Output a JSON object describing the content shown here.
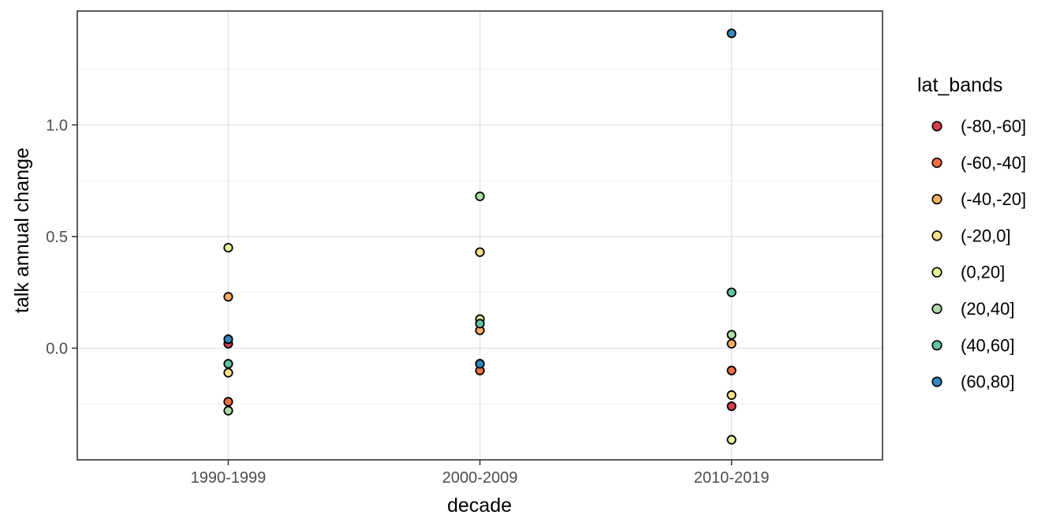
{
  "chart_data": {
    "type": "scatter",
    "title": "",
    "xlabel": "decade",
    "ylabel": "talk annual change",
    "legend_title": "lat_bands",
    "legend_position": "right",
    "palette_name": "Spectral",
    "grid": "major+minor",
    "categories": [
      "1990-1999",
      "2000-2009",
      "2010-2019"
    ],
    "y_ticks": [
      {
        "v": 0.0,
        "label": "0.0"
      },
      {
        "v": 0.5,
        "label": "0.5"
      },
      {
        "v": 1.0,
        "label": "1.0"
      }
    ],
    "y_minor": [
      -0.25,
      0.25,
      0.75,
      1.25
    ],
    "ylim": [
      -0.5,
      1.51
    ],
    "series": [
      {
        "name": "(-80,-60]",
        "color": "#D53E4F",
        "values": [
          0.02,
          -0.07,
          -0.26
        ]
      },
      {
        "name": "(-60,-40]",
        "color": "#F46D43",
        "values": [
          -0.24,
          -0.1,
          -0.1
        ]
      },
      {
        "name": "(-40,-20]",
        "color": "#FDAE61",
        "values": [
          0.23,
          0.08,
          0.02
        ]
      },
      {
        "name": "(-20,0]",
        "color": "#FEE08B",
        "values": [
          -0.11,
          0.43,
          -0.21
        ]
      },
      {
        "name": "(0,20]",
        "color": "#E6F598",
        "values": [
          0.45,
          0.13,
          -0.41
        ]
      },
      {
        "name": "(20,40]",
        "color": "#ABDDA4",
        "values": [
          -0.28,
          0.68,
          0.06
        ]
      },
      {
        "name": "(40,60]",
        "color": "#66C2A5",
        "values": [
          -0.07,
          0.11,
          0.25
        ]
      },
      {
        "name": "(60,80]",
        "color": "#3288BD",
        "values": [
          0.04,
          -0.07,
          1.41
        ]
      }
    ]
  },
  "style": {
    "background": "#FFFFFF",
    "panel_border": "#333333",
    "grid_major": "#E3E3E3",
    "grid_minor": "#EDEDED",
    "tick_color": "#333333",
    "tick_label_color": "#4D4D4D",
    "axis_title_color": "#000000",
    "point_stroke": "#000000"
  }
}
